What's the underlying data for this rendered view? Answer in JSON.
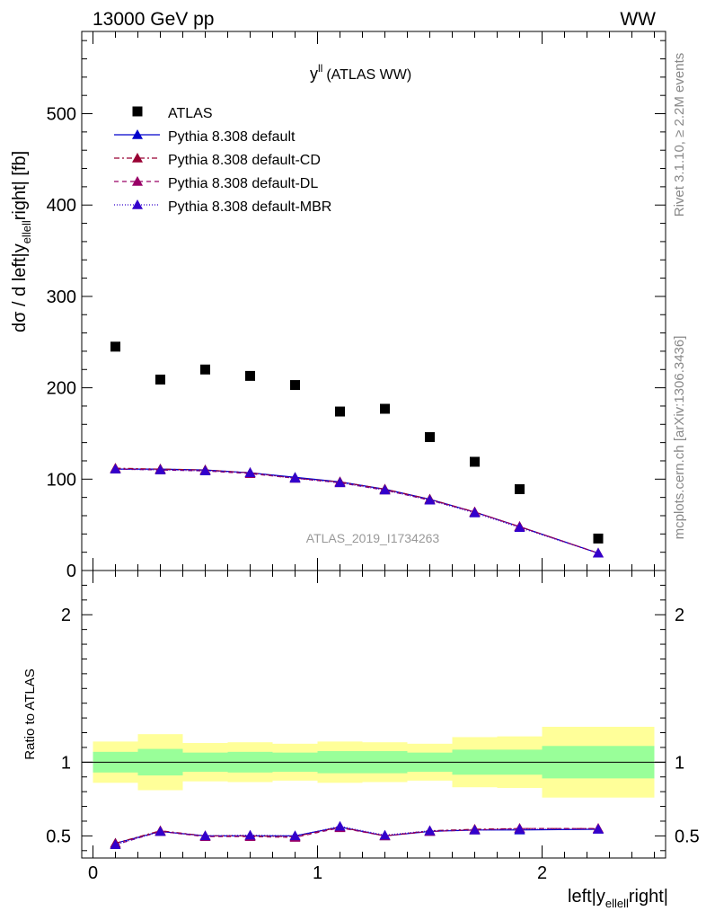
{
  "header": {
    "process": "13000 GeV pp",
    "channel": "WW"
  },
  "side_labels": {
    "rivet": "Rivet 3.1.10, ≥ 2.2M events",
    "mcplots": "mcplots.cern.ch [arXiv:1306.3436]"
  },
  "chart_data": {
    "type": "scatter",
    "title_main": "y",
    "title_sup": "ll",
    "title_rest": "(ATLAS WW)",
    "watermark": "ATLAS_2019_I1734263",
    "xlabel": {
      "pre": "left|y",
      "sub": "ellell",
      "post": "right|"
    },
    "ylabel": {
      "pre": "dσ / d left|y",
      "sub": "ellell",
      "post": "right| [fb]"
    },
    "ratio_ylabel": "Ratio to ATLAS",
    "xlim": [
      -0.05,
      2.55
    ],
    "ylim_main": [
      0,
      590
    ],
    "ylim_ratio": [
      0.35,
      2.3
    ],
    "main_yticks": [
      0,
      100,
      200,
      300,
      400,
      500
    ],
    "ratio_yticks": [
      0.5,
      1,
      2
    ],
    "xticks": [
      0,
      1,
      2
    ],
    "x": [
      0.1,
      0.3,
      0.5,
      0.7,
      0.9,
      1.1,
      1.3,
      1.5,
      1.7,
      1.9,
      2.25
    ],
    "bin_edges": [
      0,
      0.2,
      0.4,
      0.6,
      0.8,
      1.0,
      1.2,
      1.4,
      1.6,
      1.8,
      2.0,
      2.5
    ],
    "data": {
      "name": "ATLAS",
      "values": [
        245,
        209,
        220,
        213,
        203,
        174,
        177,
        146,
        119,
        89,
        35
      ],
      "band_inner": [
        0.07,
        0.09,
        0.065,
        0.07,
        0.065,
        0.075,
        0.075,
        0.065,
        0.085,
        0.085,
        0.11
      ],
      "band_outer": [
        0.14,
        0.19,
        0.13,
        0.135,
        0.125,
        0.14,
        0.135,
        0.125,
        0.17,
        0.175,
        0.24
      ]
    },
    "series": [
      {
        "name": "Pythia 8.308 default",
        "color": "#0000cc",
        "dash": "",
        "values": [
          111,
          111,
          110,
          107,
          102,
          97,
          89,
          78,
          64,
          48,
          19
        ],
        "ratio": [
          0.45,
          0.53,
          0.5,
          0.5,
          0.5,
          0.56,
          0.5,
          0.53,
          0.54,
          0.54,
          0.545
        ]
      },
      {
        "name": "Pythia 8.308 default-CD",
        "color": "#990033",
        "dash": "6,3,2,3",
        "values": [
          112,
          111,
          110,
          107,
          101,
          97,
          89,
          78,
          64,
          48,
          19
        ],
        "ratio": [
          0.45,
          0.535,
          0.5,
          0.5,
          0.495,
          0.56,
          0.5,
          0.535,
          0.545,
          0.55,
          0.55
        ]
      },
      {
        "name": "Pythia 8.308 default-DL",
        "color": "#990066",
        "dash": "5,4",
        "values": [
          111,
          110,
          109,
          106,
          101,
          96,
          88,
          77,
          64,
          48,
          19
        ],
        "ratio": [
          0.44,
          0.53,
          0.495,
          0.495,
          0.49,
          0.555,
          0.5,
          0.53,
          0.54,
          0.55,
          0.55
        ]
      },
      {
        "name": "Pythia 8.308 default-MBR",
        "color": "#3300cc",
        "dash": "1,2",
        "values": [
          111,
          110,
          109,
          107,
          101,
          96,
          88,
          77,
          63,
          47,
          19
        ],
        "ratio": [
          0.44,
          0.53,
          0.5,
          0.505,
          0.5,
          0.565,
          0.505,
          0.535,
          0.54,
          0.545,
          0.545
        ]
      }
    ],
    "colors": {
      "band_inner": "#99ff99",
      "band_outer": "#ffff99",
      "reference": "#000000"
    }
  }
}
